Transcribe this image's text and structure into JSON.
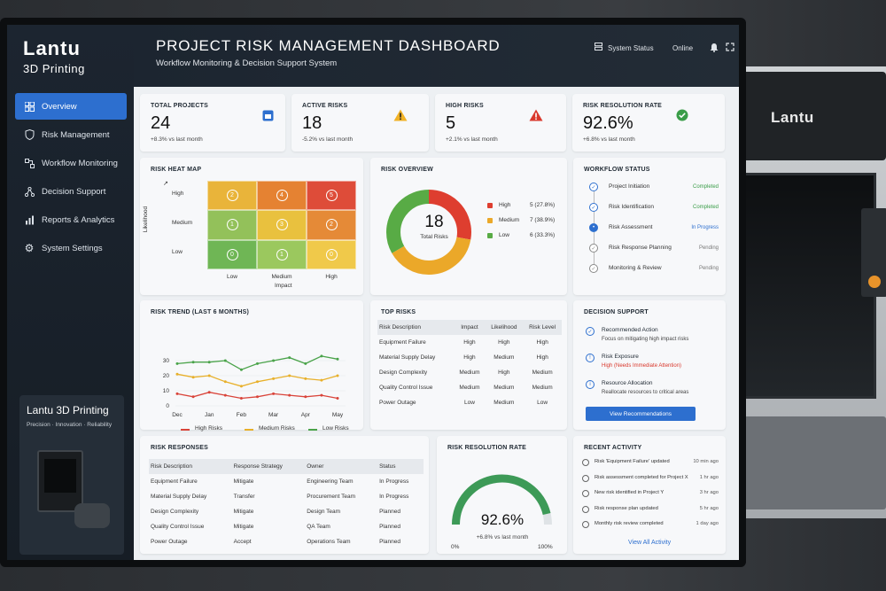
{
  "app": {
    "brand_name": "Lantu",
    "brand_sub": "3D Printing",
    "title": "PROJECT RISK MANAGEMENT DASHBOARD",
    "subtitle": "Workflow Monitoring & Decision Support System",
    "status_label": "System Status",
    "online_label": "Online",
    "printer_logo": "Lantu"
  },
  "nav": [
    {
      "label": "Overview",
      "icon": "grid-icon",
      "active": true
    },
    {
      "label": "Risk Management",
      "icon": "shield-icon"
    },
    {
      "label": "Workflow Monitoring",
      "icon": "flow-icon"
    },
    {
      "label": "Decision Support",
      "icon": "network-icon"
    },
    {
      "label": "Reports & Analytics",
      "icon": "chart-icon"
    },
    {
      "label": "System Settings",
      "icon": "gear-icon"
    }
  ],
  "promo": {
    "title": "Lantu 3D Printing",
    "tagline": "Precision · Innovation · Reliability"
  },
  "kpis": {
    "total_projects": {
      "label": "TOTAL PROJECTS",
      "value": "24",
      "change": "+8.3% vs last month"
    },
    "active_risks": {
      "label": "ACTIVE RISKS",
      "value": "18",
      "change": "-5.2% vs last month"
    },
    "high_risks": {
      "label": "HIGH RISKS",
      "value": "5",
      "change": "+2.1% vs last month"
    },
    "resolution_rate": {
      "label": "RISK RESOLUTION RATE",
      "value": "92.6%",
      "change": "+6.8% vs last month"
    }
  },
  "heatmap": {
    "title": "RISK HEAT MAP",
    "y_axis": "Likelihood",
    "x_axis": "Impact",
    "rows": [
      "High",
      "Medium",
      "Low"
    ],
    "cols": [
      "Low",
      "Medium",
      "High"
    ],
    "cells": [
      [
        2,
        4,
        5
      ],
      [
        1,
        3,
        2
      ],
      [
        0,
        1,
        0
      ]
    ],
    "colors": [
      [
        "#e9b43a",
        "#e58232",
        "#de4c39"
      ],
      [
        "#93c15a",
        "#e9c13e",
        "#e58a37"
      ],
      [
        "#6fb655",
        "#9bc85e",
        "#f0c94a"
      ]
    ]
  },
  "overview": {
    "title": "RISK OVERVIEW",
    "total": "18",
    "total_label": "Total Risks",
    "segments": [
      {
        "label": "High",
        "value": "5 (27.8%)",
        "count": 5,
        "color": "#de3e2f"
      },
      {
        "label": "Medium",
        "value": "7 (38.9%)",
        "count": 7,
        "color": "#eba829"
      },
      {
        "label": "Low",
        "value": "6 (33.3%)",
        "count": 6,
        "color": "#58ab45"
      }
    ]
  },
  "workflow": {
    "title": "WORKFLOW STATUS",
    "steps": [
      {
        "label": "Project Initiation",
        "status": "Completed",
        "color": "#3a9d48"
      },
      {
        "label": "Risk Identification",
        "status": "Completed",
        "color": "#3a9d48"
      },
      {
        "label": "Risk Assessment",
        "status": "In Progress",
        "color": "#2d6fcf"
      },
      {
        "label": "Risk Response Planning",
        "status": "Pending",
        "color": "#777777"
      },
      {
        "label": "Monitoring & Review",
        "status": "Pending",
        "color": "#777777"
      }
    ]
  },
  "trend": {
    "title": "RISK TREND (LAST 6 MONTHS)",
    "legend": [
      "High Risks",
      "Medium Risks",
      "Low Risks"
    ]
  },
  "chart_data": {
    "type": "line",
    "title": "RISK TREND (LAST 6 MONTHS)",
    "categories": [
      "Dec",
      "Jan",
      "Feb",
      "Mar",
      "Apr",
      "May"
    ],
    "x": [
      0,
      0.5,
      1,
      1.5,
      2,
      2.5,
      3,
      3.5,
      4,
      4.5,
      5
    ],
    "ylim": [
      0,
      40
    ],
    "yticks": [
      0,
      10,
      20,
      30
    ],
    "series": [
      {
        "name": "High Risks",
        "color": "#d9443a",
        "values": [
          8,
          6,
          9,
          7,
          5,
          6,
          8,
          7,
          6,
          7,
          5
        ]
      },
      {
        "name": "Medium Risks",
        "color": "#e8b02a",
        "values": [
          21,
          19,
          20,
          16,
          13,
          16,
          18,
          20,
          18,
          17,
          20
        ]
      },
      {
        "name": "Low Risks",
        "color": "#4aa34a",
        "values": [
          28,
          29,
          29,
          30,
          24,
          28,
          30,
          32,
          28,
          33,
          31
        ]
      }
    ]
  },
  "top_risks": {
    "title": "TOP RISKS",
    "headers": [
      "Risk Description",
      "Impact",
      "Likelihood",
      "Risk Level"
    ],
    "rows": [
      [
        "Equipment Failure",
        "High",
        "High",
        "High"
      ],
      [
        "Material Supply Delay",
        "High",
        "Medium",
        "High"
      ],
      [
        "Design Complexity",
        "Medium",
        "High",
        "Medium"
      ],
      [
        "Quality Control Issue",
        "Medium",
        "Medium",
        "Medium"
      ],
      [
        "Power Outage",
        "Low",
        "Medium",
        "Low"
      ]
    ]
  },
  "decision": {
    "title": "DECISION SUPPORT",
    "items": [
      {
        "heading": "Recommended Action",
        "text": "Focus on mitigating high impact risks",
        "icon": "check-circle-icon",
        "alert": false
      },
      {
        "heading": "Risk Exposure",
        "text": "High (Needs Immediate Attention)",
        "icon": "alert-icon",
        "alert": true
      },
      {
        "heading": "Resource Allocation",
        "text": "Reallocate resources to critical areas",
        "icon": "info-icon",
        "alert": false
      }
    ],
    "button": "View Recommendations"
  },
  "responses": {
    "title": "RISK RESPONSES",
    "headers": [
      "Risk Description",
      "Response Strategy",
      "Owner",
      "Status"
    ],
    "rows": [
      [
        "Equipment Failure",
        "Mitigate",
        "Engineering Team",
        "In Progress"
      ],
      [
        "Material Supply Delay",
        "Transfer",
        "Procurement Team",
        "In Progress"
      ],
      [
        "Design Complexity",
        "Mitigate",
        "Design Team",
        "Planned"
      ],
      [
        "Quality Control Issue",
        "Mitigate",
        "QA Team",
        "Planned"
      ],
      [
        "Power Outage",
        "Accept",
        "Operations Team",
        "Planned"
      ]
    ]
  },
  "gauge": {
    "title": "RISK RESOLUTION RATE",
    "value": "92.6%",
    "fraction": 0.926,
    "change": "+6.8% vs last month",
    "min": "0%",
    "max": "100%"
  },
  "activity": {
    "title": "RECENT ACTIVITY",
    "items": [
      {
        "text": "Risk 'Equipment Failure' updated",
        "time": "10 min ago"
      },
      {
        "text": "Risk assessment completed for Project X",
        "time": "1 hr ago"
      },
      {
        "text": "New risk identified in Project Y",
        "time": "3 hr ago"
      },
      {
        "text": "Risk response plan updated",
        "time": "5 hr ago"
      },
      {
        "text": "Monthly risk review completed",
        "time": "1 day ago"
      }
    ],
    "link": "View All Activity"
  }
}
